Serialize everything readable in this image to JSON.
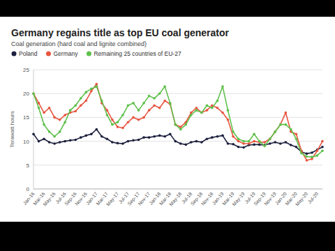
{
  "chart_data": {
    "type": "line",
    "title": "Germany regains title as top EU coal generator",
    "subtitle": "Coal generation (hard coal and lignite combined)",
    "y_label": "Terawatt hours",
    "categories": [
      "Jan-16",
      null,
      "Mar-16",
      null,
      "May-16",
      null,
      "Jul-16",
      null,
      "Sep-16",
      null,
      "Nov-16",
      null,
      "Jan-17",
      null,
      "Mar-17",
      null,
      "May-17",
      null,
      "Jul-17",
      null,
      "Sep-17",
      null,
      "Nov-17",
      null,
      "Jan-18",
      null,
      "Mar-18",
      null,
      "May-18",
      null,
      "Jul-18",
      null,
      "Sep-18",
      null,
      "Nov-18",
      null,
      "Jan-19",
      null,
      "Mar-19",
      null,
      "May-19",
      null,
      "Jul-19",
      null,
      "Sep-19",
      null,
      "Nov-19",
      null,
      "Jan-20",
      null,
      "Mar-20",
      null,
      "May-20",
      null,
      "Jul-20",
      null
    ],
    "series": [
      {
        "name": "Poland",
        "color": "#1c1f3d",
        "marker": "circle",
        "values": [
          11.5,
          10,
          10.5,
          9.8,
          9.5,
          9.8,
          10,
          10.2,
          10.3,
          10.8,
          11.2,
          11.5,
          12.5,
          11,
          10.5,
          9.8,
          9.6,
          9.5,
          10,
          10.2,
          10.3,
          10.8,
          10.8,
          11,
          11.2,
          11,
          11.5,
          10,
          9.5,
          9.3,
          9.8,
          10,
          9.8,
          10.5,
          10.8,
          11,
          11.2,
          9.5,
          9.4,
          8.8,
          8.7,
          9.2,
          9.3,
          9.3,
          9.2,
          9.5,
          9.8,
          9.5,
          9.8,
          9.2,
          8.8,
          7.8,
          7.4,
          7.6,
          8.2,
          8.8
        ]
      },
      {
        "name": "Germany",
        "color": "#e8553f",
        "marker": "circle",
        "values": [
          20,
          18,
          16,
          17,
          15,
          14.5,
          15.5,
          16,
          16.3,
          17.5,
          18.5,
          20.5,
          22,
          18,
          16.5,
          14.5,
          13,
          12.8,
          14,
          15,
          14.5,
          15,
          16.5,
          17.5,
          17,
          18.5,
          17.8,
          13.5,
          13,
          14,
          16,
          17,
          16,
          16.5,
          17.5,
          17,
          16,
          14.5,
          11,
          10,
          9.5,
          9.5,
          10,
          9.8,
          9.8,
          10.5,
          12,
          13.5,
          16,
          12,
          11.5,
          8,
          6,
          6.3,
          8,
          10
        ]
      },
      {
        "name": "Remaining 25 countries of EU-27",
        "color": "#5ec04a",
        "marker": "circle",
        "values": [
          20,
          17,
          13.5,
          12,
          11,
          12,
          14,
          16.5,
          17.5,
          19,
          20.3,
          21,
          21.5,
          18.5,
          15.5,
          13.5,
          14,
          15.5,
          17.5,
          18,
          16.5,
          18,
          19.5,
          19,
          20,
          21.5,
          18,
          13.5,
          12.5,
          13.5,
          15.5,
          16.5,
          16,
          17.5,
          17,
          18.5,
          21.5,
          16.5,
          12,
          10.5,
          10,
          10,
          11.5,
          10,
          9,
          10.5,
          12,
          13.5,
          13.5,
          12.5,
          10.5,
          7.5,
          6.8,
          6.7,
          7,
          8
        ]
      }
    ],
    "ylim": [
      0,
      25
    ],
    "yticks": [
      0,
      5,
      10,
      15,
      20,
      25
    ],
    "grid": true,
    "legend": "top"
  }
}
